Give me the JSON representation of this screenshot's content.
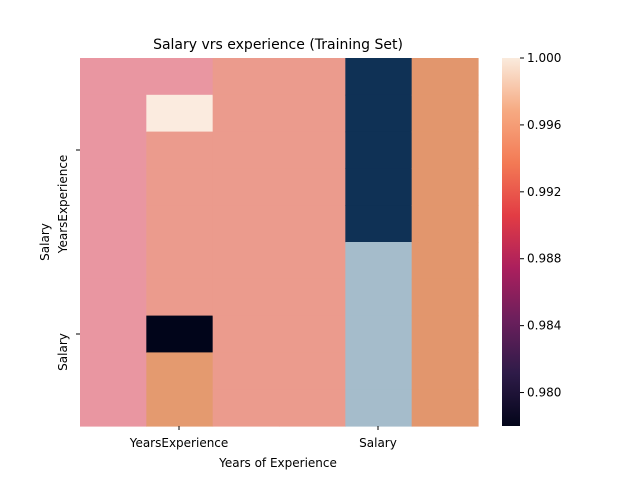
{
  "chart_data": {
    "type": "heatmap",
    "title": "Salary vrs experience (Training Set)",
    "xlabel": "Years of Experience",
    "ylabel": "Salary",
    "x_tick_labels": [
      "YearsExperience",
      "Salary"
    ],
    "y_tick_labels": [
      "YearsExperience",
      "Salary"
    ],
    "colorbar": {
      "range": [
        0.978,
        1.0
      ],
      "ticks": [
        "0.980",
        "0.984",
        "0.988",
        "0.992",
        "0.996",
        "1.000"
      ],
      "colormap": "rocket"
    },
    "column_groups": [
      {
        "name": "col-1",
        "cell_colors": [
          "#e996a1",
          "#e996a1",
          "#e996a1",
          "#e996a1",
          "#e996a1",
          "#e996a1",
          "#e996a1",
          "#e996a1",
          "#e996a1",
          "#e996a1"
        ]
      },
      {
        "name": "col-2",
        "cell_colors": [
          "#e996a1",
          "#fbebdf",
          "#eb9b8d",
          "#eb9b8d",
          "#eb9b8d",
          "#eb9b8d",
          "#eb9b8d",
          "#01051a",
          "#e49a6f",
          "#e49a6f"
        ]
      },
      {
        "name": "col-3",
        "cell_colors": [
          "#eb9b8d",
          "#eb9b8d",
          "#eb9b8d",
          "#eb9b8d",
          "#eb9b8d",
          "#eb9b8d",
          "#eb9b8d",
          "#eb9b8d",
          "#eb9b8d",
          "#eb9b8d"
        ]
      },
      {
        "name": "col-4",
        "cell_colors": [
          "#eb9b8d",
          "#eb9b8d",
          "#eb9b8d",
          "#eb9b8d",
          "#eb9b8d",
          "#eb9b8d",
          "#eb9b8d",
          "#eb9b8d",
          "#eb9b8d",
          "#eb9b8d"
        ]
      },
      {
        "name": "col-5",
        "cell_colors": [
          "#0f3155",
          "#0f3155",
          "#0f3155",
          "#0f3155",
          "#0f3155",
          "#a5bccb",
          "#a5bccb",
          "#a5bccb",
          "#a5bccb",
          "#a5bccb"
        ]
      },
      {
        "name": "col-6",
        "cell_colors": [
          "#e2966d",
          "#e2966d",
          "#e2966d",
          "#e2966d",
          "#e2966d",
          "#e2966d",
          "#e2966d",
          "#e2966d",
          "#e2966d",
          "#e2966d"
        ]
      }
    ],
    "colorbar_stops": [
      "#03051a",
      "#2e1b48",
      "#6a1f5c",
      "#ab1f5d",
      "#e23c44",
      "#f37a55",
      "#f6aa82",
      "#faebdd"
    ]
  }
}
